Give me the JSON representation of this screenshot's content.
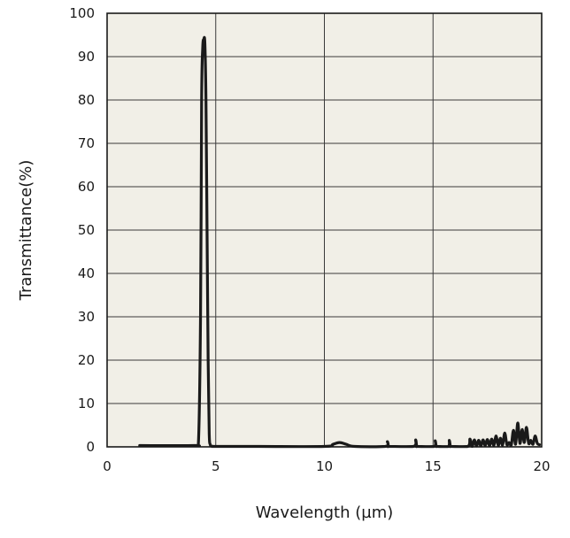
{
  "chart_data": {
    "type": "line",
    "title": "",
    "xlabel": "Wavelength (µm)",
    "ylabel": "Transmittance(%)",
    "xlim": [
      0,
      20
    ],
    "ylim": [
      0,
      100
    ],
    "xticks": [
      0,
      5,
      10,
      15,
      20
    ],
    "yticks": [
      0,
      10,
      20,
      30,
      40,
      50,
      60,
      70,
      80,
      90,
      100
    ],
    "grid": true,
    "legend": "none",
    "colors": {
      "plot_background": "#f1efe7",
      "line": "#1a1a1a",
      "grid": "#3a3a3a"
    },
    "series": [
      {
        "x": [
          1.5,
          4.0,
          4.2,
          4.3,
          4.35,
          4.4,
          4.45,
          4.5,
          4.55,
          4.6,
          4.65,
          4.7,
          4.75,
          4.8,
          4.9,
          5.0,
          7.0,
          10.0,
          10.4,
          10.7,
          11.0,
          11.4,
          12.8,
          12.9,
          12.95,
          13.0,
          14.1,
          14.2,
          14.25,
          14.3,
          15.05,
          15.1,
          15.15,
          15.2,
          15.7,
          15.75,
          15.8,
          15.85,
          16.6,
          16.7,
          16.8,
          16.9,
          17.0,
          17.1,
          17.2,
          17.3,
          17.4,
          17.5,
          17.6,
          17.7,
          17.8,
          17.9,
          18.0,
          18.1,
          18.2,
          18.3,
          18.4,
          18.5,
          18.6,
          18.7,
          18.8,
          18.9,
          19.0,
          19.1,
          19.2,
          19.3,
          19.4,
          19.5,
          19.6,
          19.7,
          19.8,
          19.9
        ],
        "y": [
          0.3,
          0.3,
          0.6,
          30,
          80,
          92,
          94,
          93,
          80,
          50,
          20,
          3,
          0.5,
          0.2,
          0.1,
          0.1,
          0.1,
          0.1,
          0.6,
          1.0,
          0.6,
          0.1,
          0.1,
          1.2,
          0.1,
          0.1,
          0.1,
          1.6,
          0.1,
          0.1,
          0.1,
          1.4,
          0.1,
          0.1,
          0.1,
          1.5,
          0.1,
          0.1,
          0.1,
          1.8,
          0.1,
          1.6,
          0.2,
          1.5,
          0.2,
          1.6,
          0.3,
          1.7,
          0.3,
          1.8,
          0.3,
          2.5,
          0.3,
          2.0,
          0.4,
          3.2,
          0.5,
          1.0,
          0.4,
          3.8,
          0.6,
          5.5,
          0.8,
          4.0,
          1.0,
          4.5,
          0.8,
          1.5,
          0.6,
          2.5,
          0.8,
          0.5
        ]
      }
    ]
  }
}
